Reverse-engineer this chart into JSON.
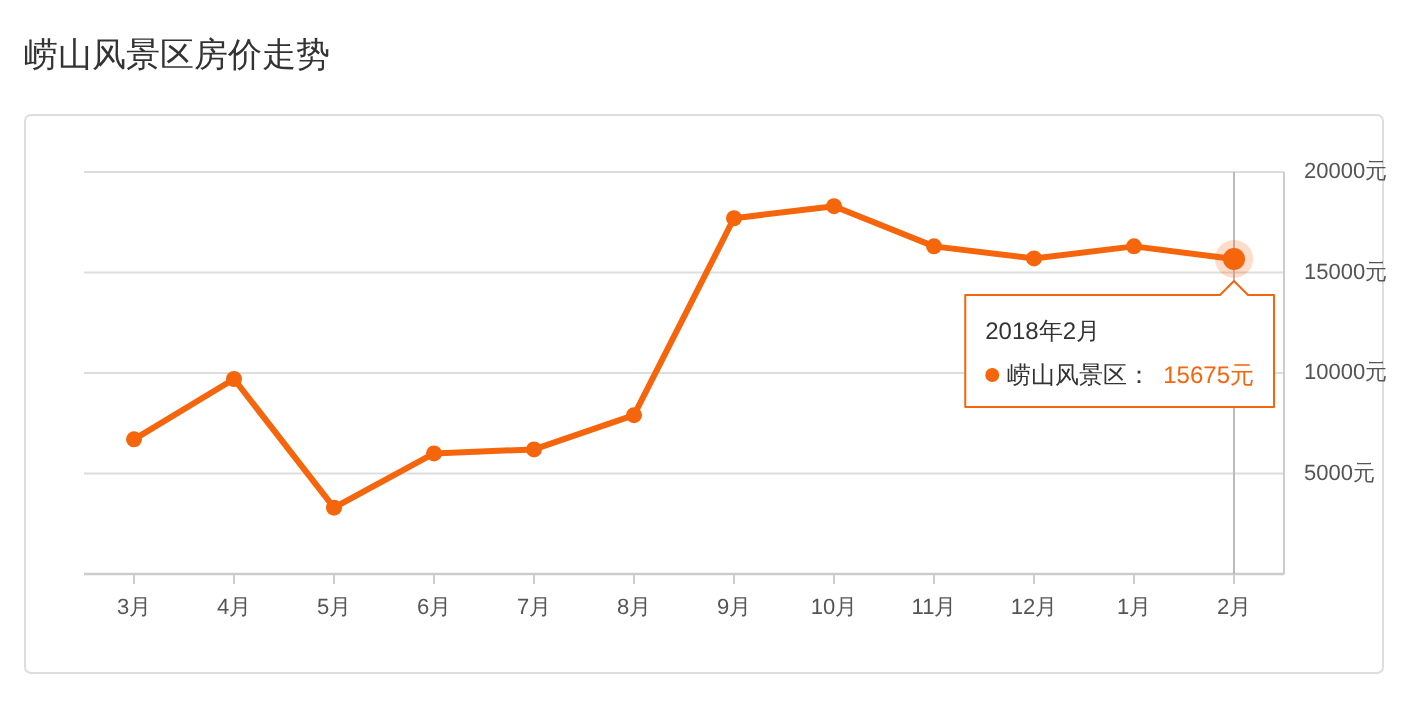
{
  "chart_data": {
    "type": "line",
    "title": "崂山风景区房价走势",
    "categories": [
      "3月",
      "4月",
      "5月",
      "6月",
      "7月",
      "8月",
      "9月",
      "10月",
      "11月",
      "12月",
      "1月",
      "2月"
    ],
    "series": [
      {
        "name": "崂山风景区：",
        "color": "#f5650c",
        "values": [
          6700,
          9700,
          3300,
          6000,
          6200,
          7900,
          17700,
          18300,
          16300,
          15700,
          16300,
          15675
        ]
      }
    ],
    "ylim": [
      0,
      20000
    ],
    "yticks": [
      {
        "value": 0,
        "label": null
      },
      {
        "value": 5000,
        "label": "5000元"
      },
      {
        "value": 10000,
        "label": "10000元"
      },
      {
        "value": 15000,
        "label": "15000元"
      },
      {
        "value": 20000,
        "label": "20000元"
      }
    ],
    "grid": "y",
    "marker": "circle",
    "line_style": "solid",
    "legend": "right",
    "ref_lines": [
      {
        "axis": "x",
        "value": "2月",
        "color": "#bbbbbb"
      }
    ],
    "annotations": [
      "2018年2月",
      "15675元"
    ]
  }
}
